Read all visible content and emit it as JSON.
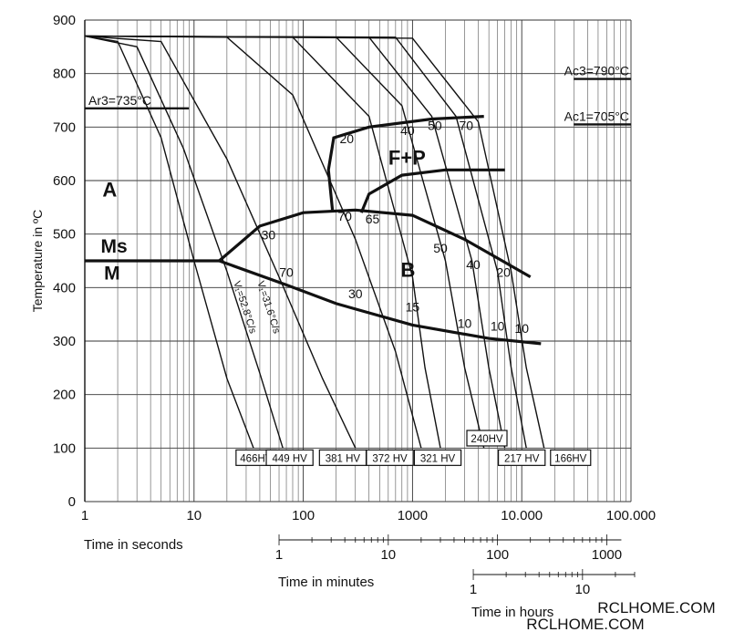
{
  "chart_data": {
    "type": "line",
    "title": "",
    "ylabel": "Temperature in ºC",
    "ylim": [
      0,
      900
    ],
    "yticks": [
      "0",
      "100",
      "200",
      "300",
      "400",
      "500",
      "600",
      "700",
      "800",
      "900"
    ],
    "xscale": "log",
    "xlim": [
      1,
      100000
    ],
    "xlabel": "Time in seconds",
    "xticks": [
      "1",
      "10",
      "100",
      "1000",
      "10.000",
      "100.000"
    ],
    "xticks_values": [
      1,
      10,
      100,
      1000,
      10000,
      100000
    ],
    "minutes_axis": {
      "label": "Time in minutes",
      "ticks": [
        "1",
        "10",
        "100",
        "1000"
      ],
      "values": [
        1,
        10,
        100,
        1000
      ]
    },
    "hours_axis": {
      "label": "Time in hours",
      "ticks": [
        "1",
        "10"
      ],
      "values": [
        1,
        10
      ]
    },
    "critical_temps": [
      {
        "label": "Ac3=790°C",
        "temp": 790
      },
      {
        "label": "Ac1=705°C",
        "temp": 705
      },
      {
        "label": "Ar3=735°C",
        "temp": 735
      }
    ],
    "phase_labels": [
      "A",
      "F+P",
      "Ms",
      "M",
      "B"
    ],
    "cooling_rates": [
      "V₁=52.8°C/s",
      "V₁=31.6°C/s"
    ],
    "cooling_curves": [
      {
        "x": [
          1,
          2,
          5,
          10,
          20,
          35
        ],
        "y": [
          870,
          860,
          680,
          450,
          230,
          100
        ]
      },
      {
        "x": [
          1,
          3,
          8,
          20,
          40,
          65
        ],
        "y": [
          870,
          850,
          660,
          430,
          240,
          100
        ]
      },
      {
        "x": [
          1,
          5,
          20,
          60,
          150,
          300
        ],
        "y": [
          870,
          860,
          640,
          420,
          230,
          100
        ]
      },
      {
        "x": [
          1,
          20,
          80,
          300,
          700,
          1200
        ],
        "y": [
          870,
          868,
          760,
          490,
          280,
          100
        ]
      },
      {
        "x": [
          1,
          80,
          400,
          1000,
          1300,
          1800
        ],
        "y": [
          870,
          868,
          720,
          420,
          250,
          100
        ]
      },
      {
        "x": [
          1,
          200,
          800,
          2000,
          3000,
          4500
        ],
        "y": [
          870,
          868,
          740,
          450,
          250,
          100
        ]
      },
      {
        "x": [
          1,
          400,
          1500,
          3500,
          5000,
          7000
        ],
        "y": [
          870,
          868,
          720,
          450,
          250,
          100
        ]
      },
      {
        "x": [
          1,
          700,
          2500,
          6000,
          8000,
          11000
        ],
        "y": [
          870,
          868,
          720,
          430,
          250,
          100
        ]
      },
      {
        "x": [
          1,
          1000,
          4000,
          8000,
          11000,
          16000
        ],
        "y": [
          870,
          866,
          710,
          430,
          250,
          100
        ]
      }
    ],
    "boundaries": {
      "ms": {
        "x": [
          1,
          17
        ],
        "y": [
          450,
          450
        ]
      },
      "ms_to_martensite": {
        "x": [
          17,
          70,
          200,
          1000,
          5000,
          15000
        ],
        "y": [
          450,
          405,
          370,
          330,
          305,
          295
        ]
      },
      "bainite_start": {
        "x": [
          17,
          40,
          100,
          300,
          1000,
          3000,
          12000
        ],
        "y": [
          450,
          515,
          540,
          545,
          535,
          490,
          420
        ]
      },
      "ferrite_start": {
        "x": [
          185,
          170,
          190,
          400,
          1500,
          4500
        ],
        "y": [
          545,
          620,
          680,
          700,
          715,
          720
        ]
      },
      "pearlite_nose": {
        "x": [
          340,
          400,
          800,
          2000,
          7000
        ],
        "y": [
          540,
          575,
          610,
          620,
          620
        ]
      }
    },
    "annotations": [
      {
        "text": "20",
        "x": 250,
        "y": 670
      },
      {
        "text": "40",
        "x": 900,
        "y": 685
      },
      {
        "text": "50",
        "x": 1600,
        "y": 695
      },
      {
        "text": "70",
        "x": 3100,
        "y": 695
      },
      {
        "text": "30",
        "x": 48,
        "y": 490
      },
      {
        "text": "70",
        "x": 240,
        "y": 525
      },
      {
        "text": "65",
        "x": 430,
        "y": 520
      },
      {
        "text": "50",
        "x": 1800,
        "y": 465
      },
      {
        "text": "40",
        "x": 3600,
        "y": 435
      },
      {
        "text": "20",
        "x": 6800,
        "y": 420
      },
      {
        "text": "70",
        "x": 70,
        "y": 420
      },
      {
        "text": "30",
        "x": 300,
        "y": 380
      },
      {
        "text": "15",
        "x": 1000,
        "y": 355
      },
      {
        "text": "10",
        "x": 3000,
        "y": 325
      },
      {
        "text": "10",
        "x": 6000,
        "y": 320
      },
      {
        "text": "10",
        "x": 10000,
        "y": 315
      }
    ],
    "hardness": [
      {
        "label": "466HV",
        "x": 37
      },
      {
        "label": "449 HV",
        "x": 75
      },
      {
        "label": "381 HV",
        "x": 230
      },
      {
        "label": "372 HV",
        "x": 620
      },
      {
        "label": "321 HV",
        "x": 1700
      },
      {
        "label": "240HV",
        "x": 4800
      },
      {
        "label": "217 HV",
        "x": 10000
      },
      {
        "label": "166HV",
        "x": 28000
      }
    ],
    "grid": true
  },
  "watermark": "RCLHOME.COM"
}
